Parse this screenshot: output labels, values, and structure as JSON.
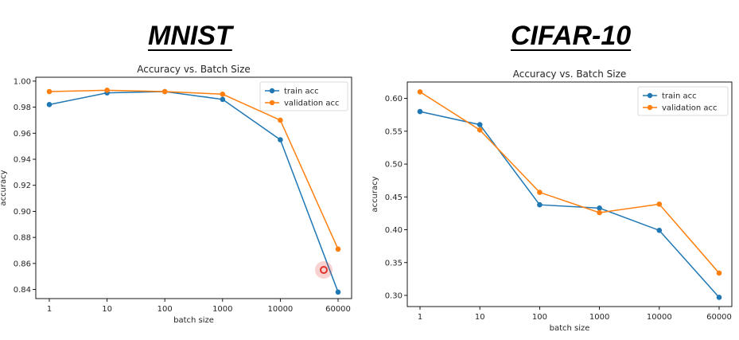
{
  "panels": [
    {
      "heading": "MNIST"
    },
    {
      "heading": "CIFAR-10"
    }
  ],
  "chart_data": [
    {
      "type": "line",
      "title": "Accuracy vs. Batch Size",
      "xlabel": "batch size",
      "ylabel": "accuracy",
      "categories": [
        "1",
        "10",
        "100",
        "1000",
        "10000",
        "60000"
      ],
      "series": [
        {
          "name": "train acc",
          "color": "#1f77b4",
          "values": [
            0.982,
            0.991,
            0.992,
            0.986,
            0.955,
            0.838
          ]
        },
        {
          "name": "validation acc",
          "color": "#ff7f0e",
          "values": [
            0.992,
            0.993,
            0.992,
            0.99,
            0.97,
            0.871
          ]
        }
      ],
      "yticks": [
        "0.84",
        "0.86",
        "0.88",
        "0.90",
        "0.92",
        "0.94",
        "0.96",
        "0.98",
        "1.00"
      ],
      "ylim": [
        0.833,
        1.003
      ],
      "legend": "top-right",
      "grid": false
    },
    {
      "type": "line",
      "title": "Accuracy vs. Batch Size",
      "xlabel": "batch size",
      "ylabel": "accuracy",
      "categories": [
        "1",
        "10",
        "100",
        "1000",
        "10000",
        "60000"
      ],
      "series": [
        {
          "name": "train acc",
          "color": "#1f77b4",
          "values": [
            0.58,
            0.56,
            0.438,
            0.433,
            0.399,
            0.297
          ]
        },
        {
          "name": "validation acc",
          "color": "#ff7f0e",
          "values": [
            0.61,
            0.552,
            0.457,
            0.426,
            0.439,
            0.334
          ]
        }
      ],
      "yticks": [
        "0.30",
        "0.35",
        "0.40",
        "0.45",
        "0.50",
        "0.55",
        "0.60"
      ],
      "ylim": [
        0.283,
        0.625
      ],
      "legend": "top-right",
      "grid": false
    }
  ],
  "cursor_marker": {
    "color": "#e0322b"
  }
}
